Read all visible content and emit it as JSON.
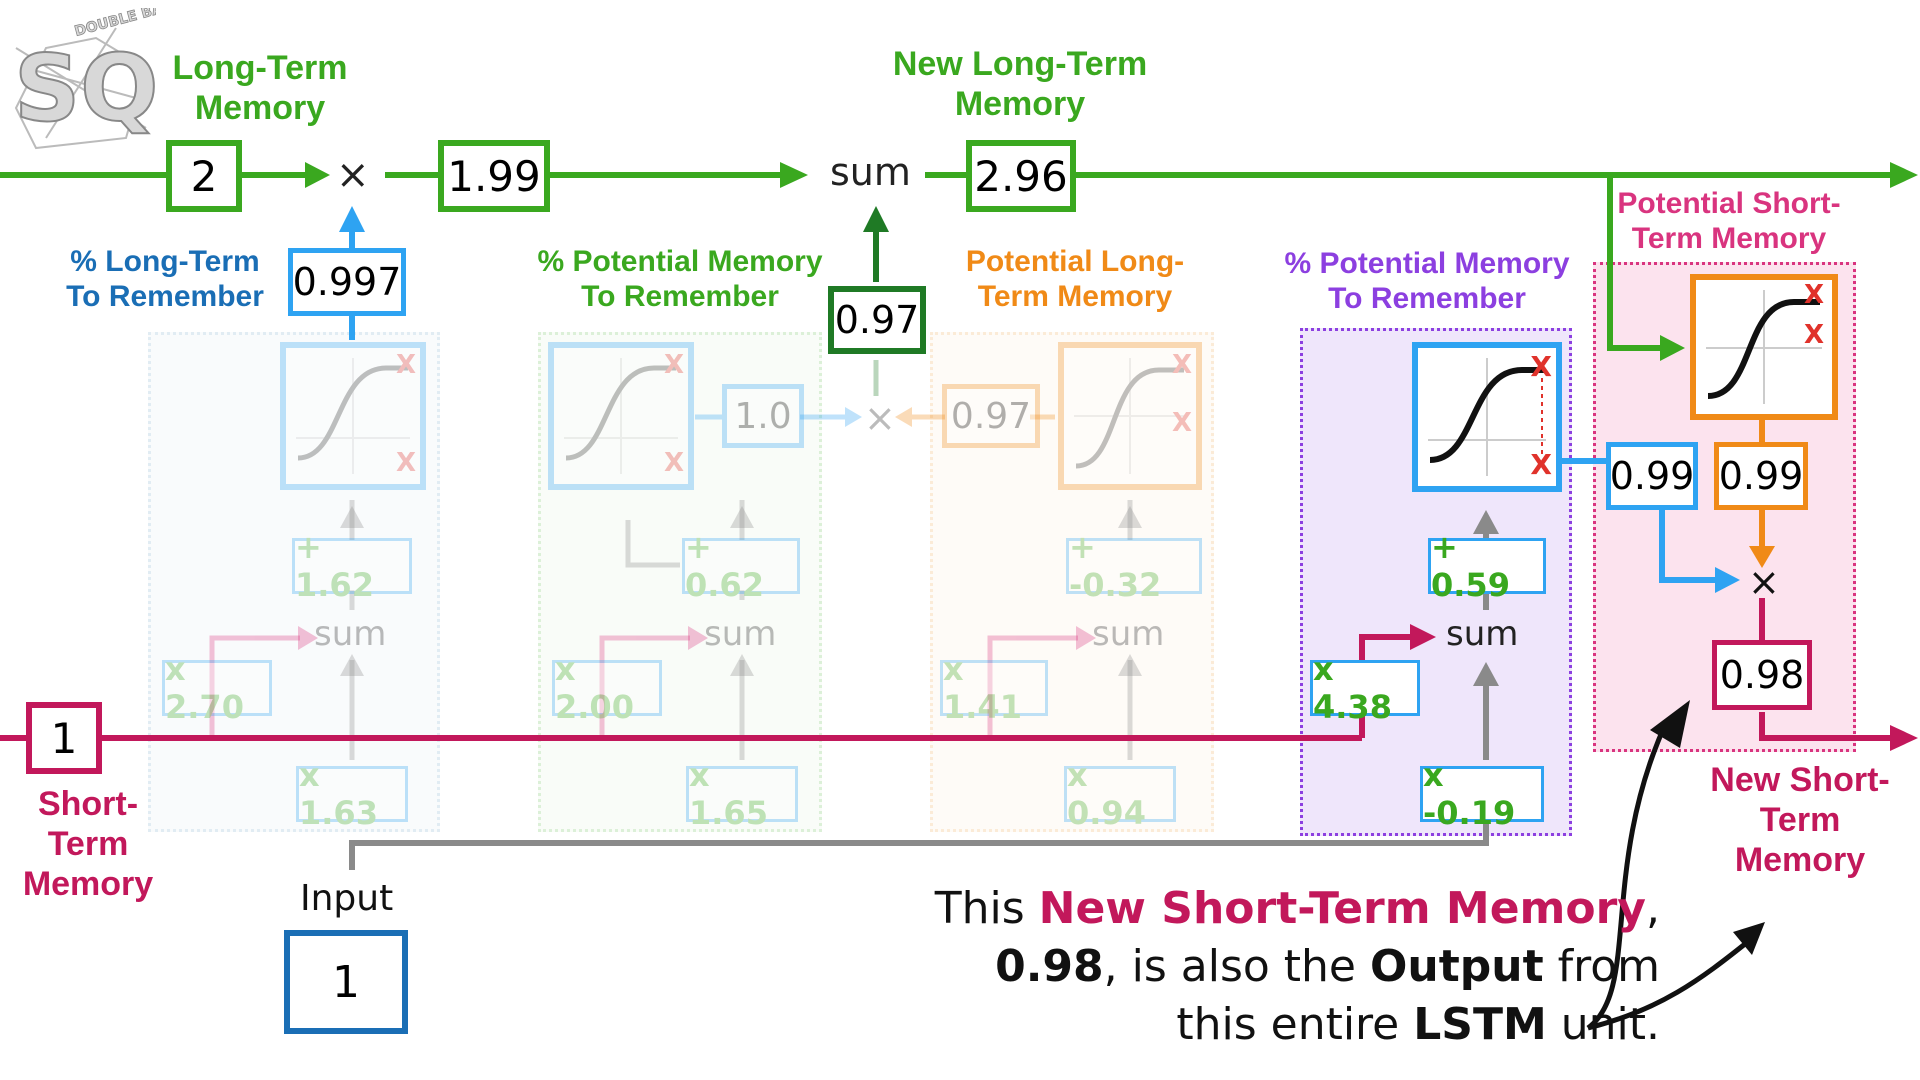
{
  "top_labels": {
    "long_term_memory": "Long-Term\nMemory",
    "new_long_term_memory": "New Long-Term\nMemory"
  },
  "gate_labels": {
    "pct_long_term": "% Long-Term\nTo Remember",
    "pct_potential_memory_green": "% Potential Memory\nTo Remember",
    "potential_long_term": "Potential Long-\nTerm Memory",
    "pct_potential_memory_purple": "% Potential Memory\nTo Remember",
    "potential_short_term": "Potential Short-\nTerm Memory"
  },
  "bottom_labels": {
    "short_term_memory": "Short-\nTerm\nMemory",
    "input": "Input",
    "new_short_term_memory": "New Short-\nTerm\nMemory"
  },
  "values": {
    "long_term_in": "2",
    "long_term_scaled": "1.99",
    "new_long_term": "2.96",
    "forget_gate_out": "0.997",
    "potential_contrib": "0.97",
    "input_gate_out": "1.0",
    "candidate_out": "0.97",
    "output_gate_out": "0.99",
    "tanh_out": "0.99",
    "new_short_term": "0.98",
    "short_term_in": "1",
    "input_value": "1"
  },
  "weights": {
    "forget": {
      "bias": "+ 1.62",
      "stm": "x 2.70",
      "input": "x 1.63"
    },
    "input_gate": {
      "bias": "+ 0.62",
      "stm": "x 2.00",
      "input": "x 1.65"
    },
    "candidate": {
      "bias": "+ -0.32",
      "stm": "x 1.41",
      "input": "x 0.94"
    },
    "output_gate": {
      "bias": "+ 0.59",
      "stm": "x 4.38",
      "input": "x -0.19"
    }
  },
  "ops": {
    "multiply": "×",
    "sum": "sum",
    "x_mark": "X"
  },
  "caption": {
    "p1": "This ",
    "p2": "New Short-Term Memory",
    "p3": ",",
    "p4": "0.98",
    "p5": ", is also the ",
    "p6": "Output",
    "p7": " from",
    "p8": "this entire ",
    "p9": "LSTM",
    "p10": " unit."
  },
  "logo_text": {
    "letters": "SQ!",
    "small": "DOUBLE BAM!!"
  },
  "colors": {
    "green": "#3aa81f",
    "dark_green": "#1f7a25",
    "blue": "#1a6eb5",
    "light_blue": "#2ea3f2",
    "orange": "#f08a17",
    "purple": "#8c3fe0",
    "pink": "#d9347f",
    "magenta": "#c2185b",
    "gray": "#8a8a8a",
    "red": "#e0322b"
  }
}
